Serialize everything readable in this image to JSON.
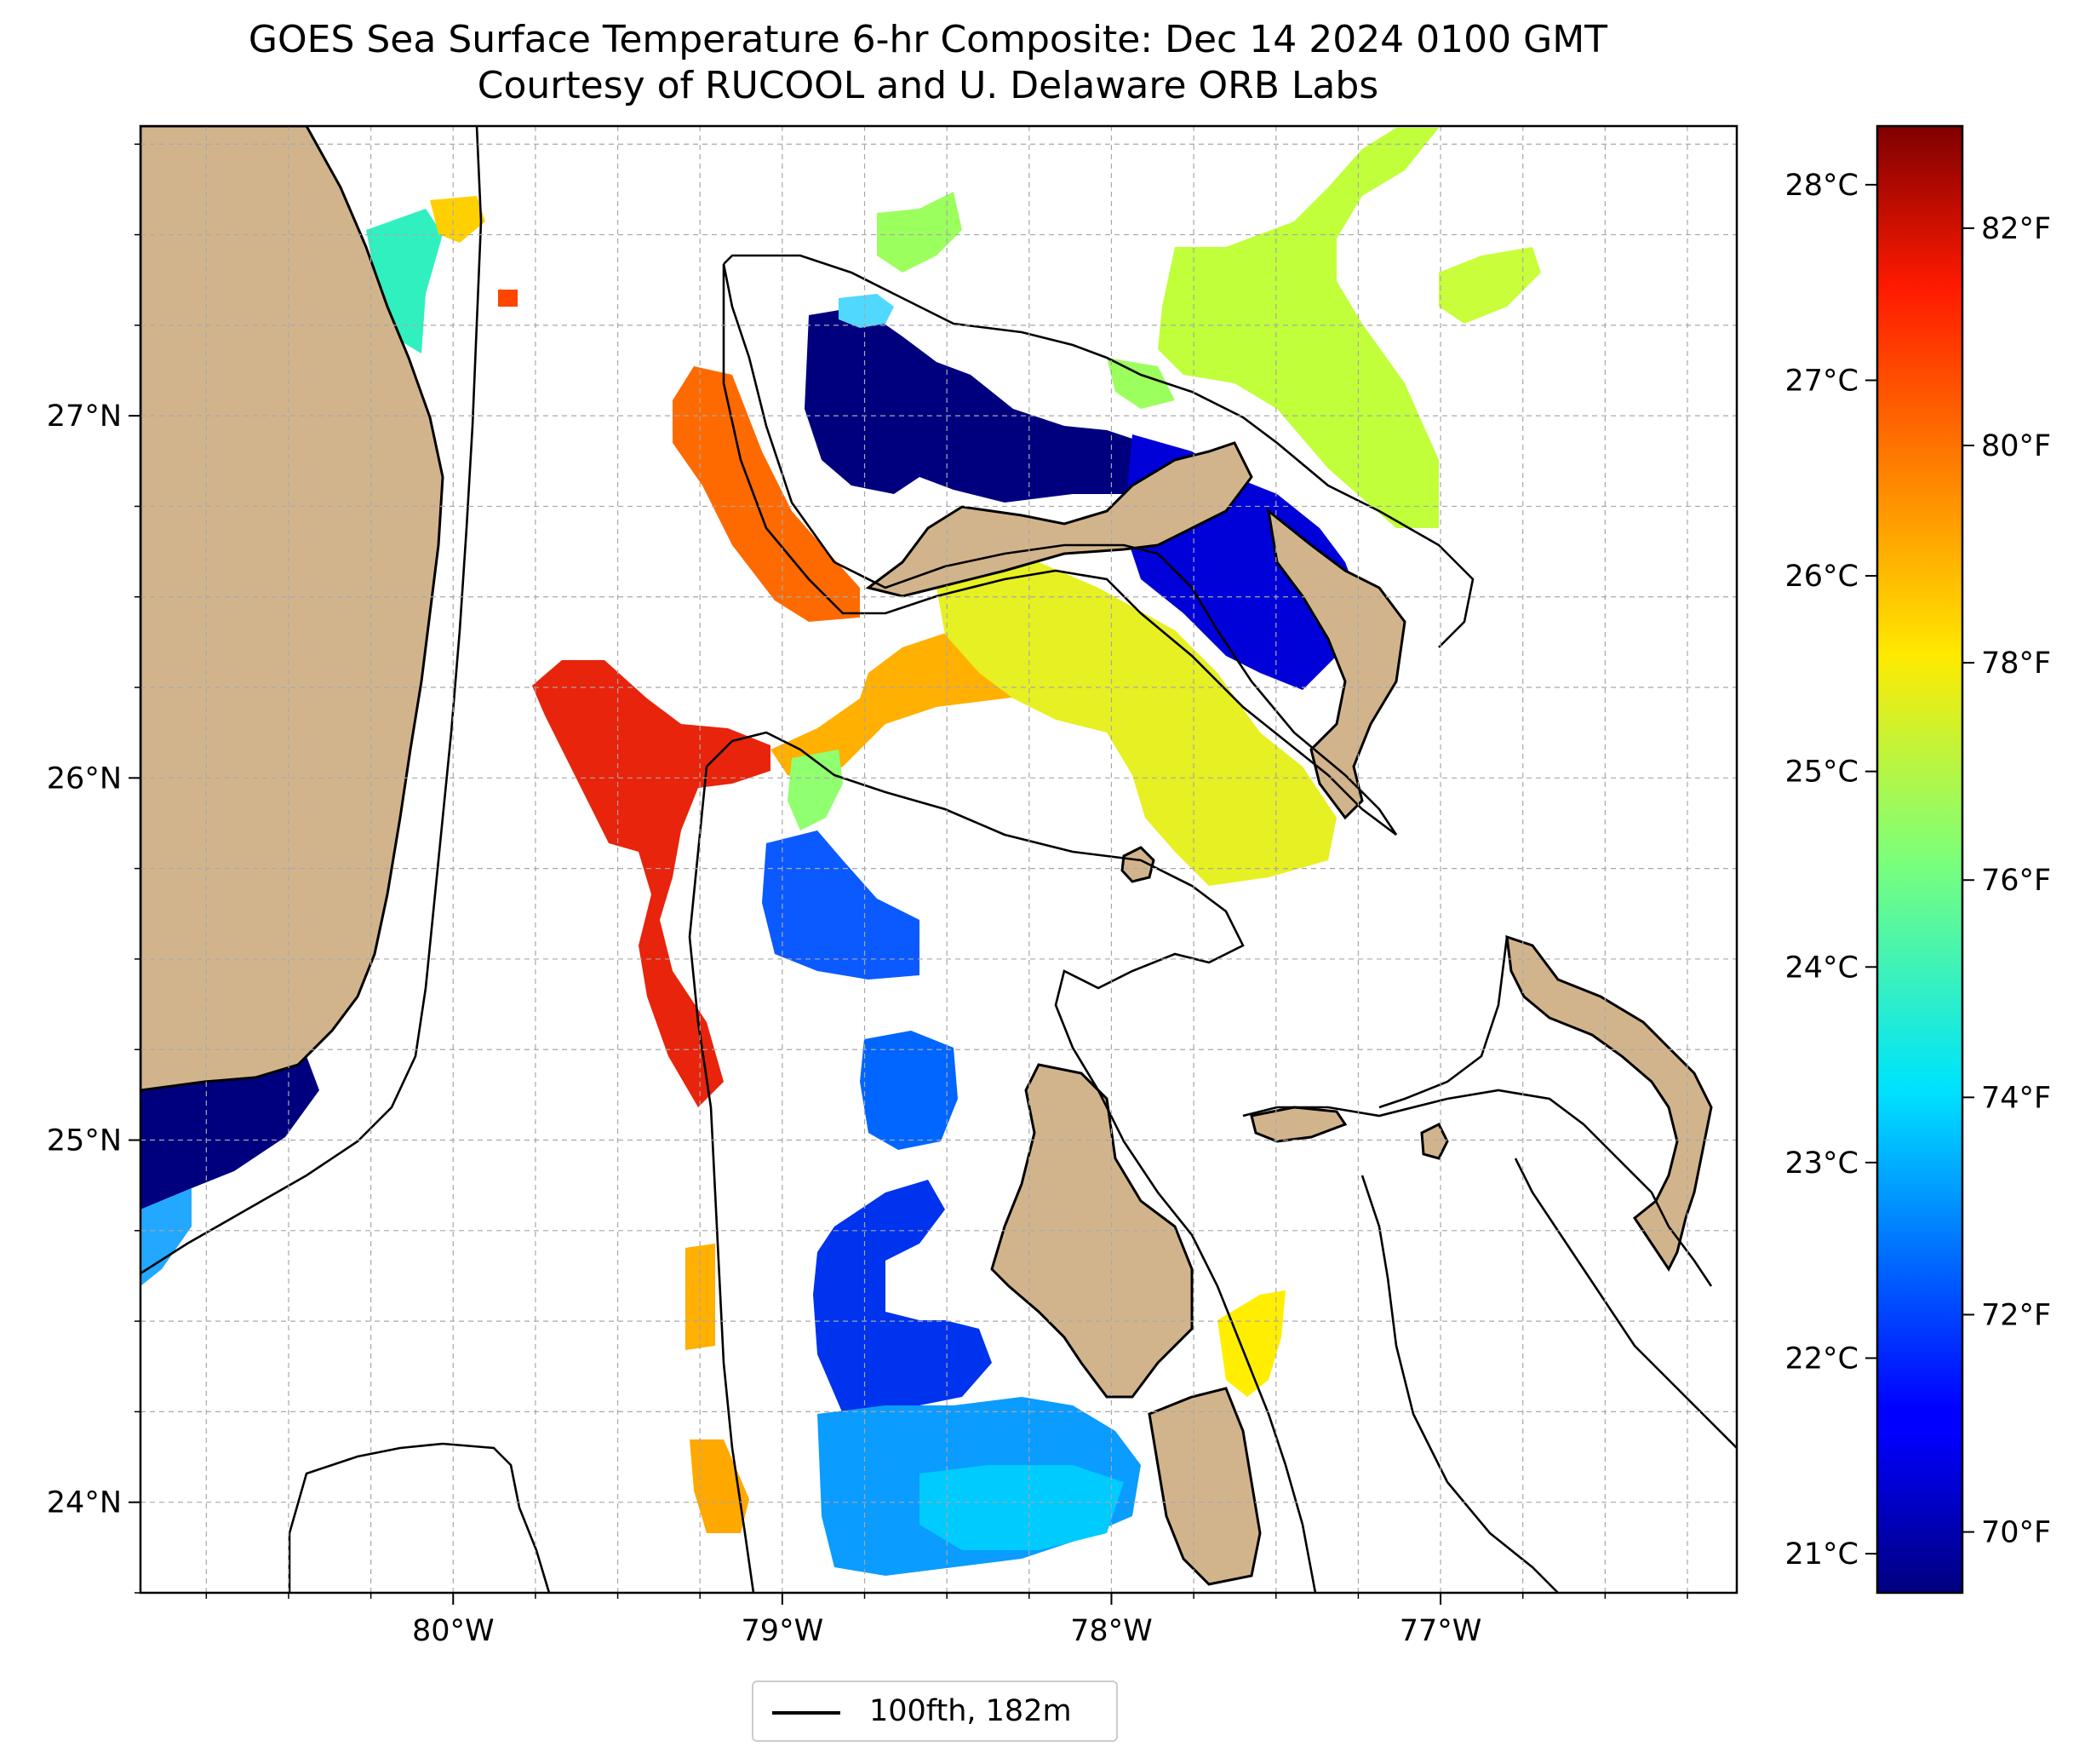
{
  "title": {
    "line1": "GOES Sea Surface Temperature 6-hr Composite: Dec 14 2024 0100 GMT",
    "line2": "Courtesy of RUCOOL and U. Delaware ORB Labs"
  },
  "map": {
    "lon_range": [
      -80.95,
      -76.1
    ],
    "lat_range": [
      23.75,
      27.8
    ],
    "lon_ticks": [
      {
        "value": -80,
        "label": "80°W"
      },
      {
        "value": -79,
        "label": "79°W"
      },
      {
        "value": -78,
        "label": "78°W"
      },
      {
        "value": -77,
        "label": "77°W"
      }
    ],
    "lat_ticks": [
      {
        "value": 24,
        "label": "24°N"
      },
      {
        "value": 25,
        "label": "25°N"
      },
      {
        "value": 26,
        "label": "26°N"
      },
      {
        "value": 27,
        "label": "27°N"
      }
    ],
    "grid": true,
    "land_color": "#d2b48c",
    "contour_color": "#000000"
  },
  "colorbar": {
    "colormap": "jet",
    "range_c": [
      20.8,
      28.3
    ],
    "celsius_ticks": [
      {
        "value": 21,
        "label": "21°C"
      },
      {
        "value": 22,
        "label": "22°C"
      },
      {
        "value": 23,
        "label": "23°C"
      },
      {
        "value": 24,
        "label": "24°C"
      },
      {
        "value": 25,
        "label": "25°C"
      },
      {
        "value": 26,
        "label": "26°C"
      },
      {
        "value": 27,
        "label": "27°C"
      },
      {
        "value": 28,
        "label": "28°C"
      }
    ],
    "fahrenheit_ticks": [
      {
        "value": 70,
        "label": "70°F"
      },
      {
        "value": 72,
        "label": "72°F"
      },
      {
        "value": 74,
        "label": "74°F"
      },
      {
        "value": 76,
        "label": "76°F"
      },
      {
        "value": 78,
        "label": "78°F"
      },
      {
        "value": 80,
        "label": "80°F"
      },
      {
        "value": 82,
        "label": "82°F"
      }
    ]
  },
  "legend": {
    "label": "100fth, 182m",
    "line_color": "#000000",
    "placement": "bottom-center"
  }
}
